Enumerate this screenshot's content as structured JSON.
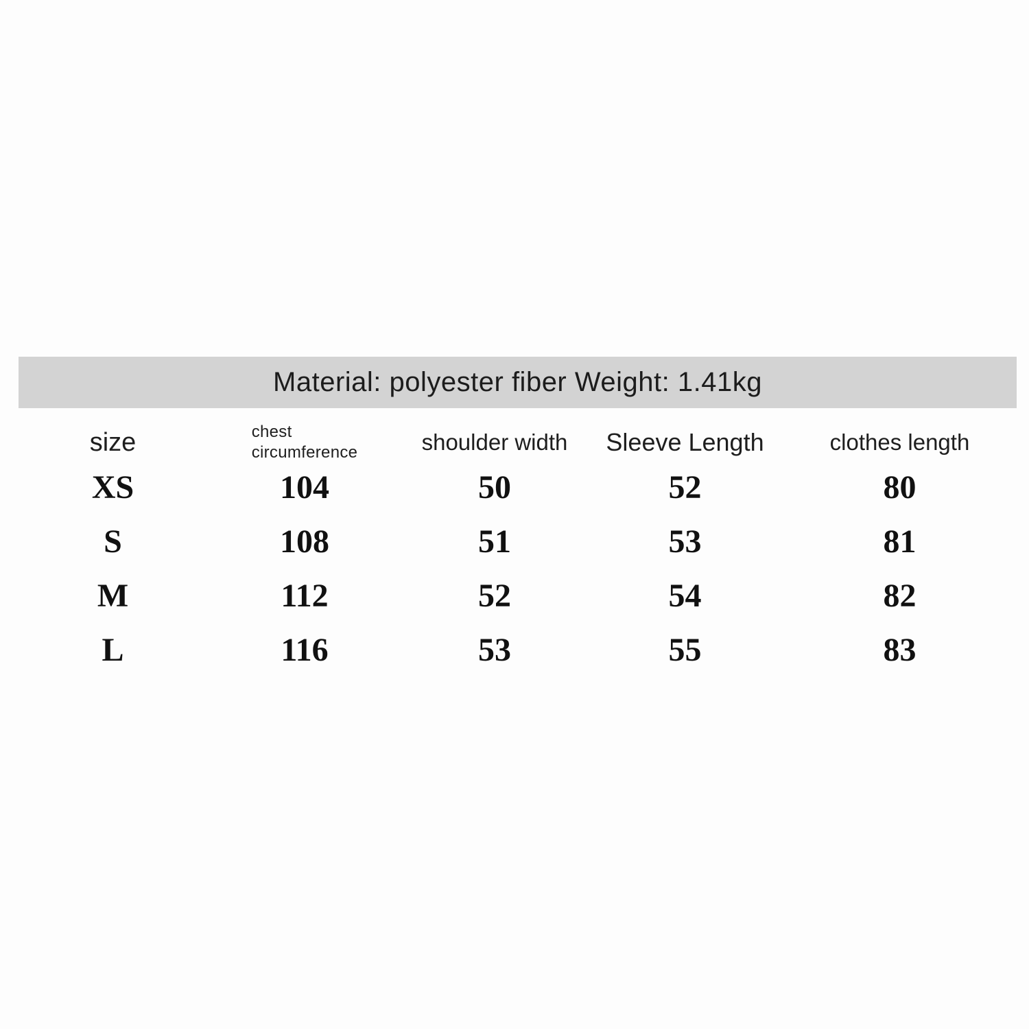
{
  "banner": {
    "text": "Material: polyester fiber Weight: 1.41kg"
  },
  "table": {
    "headers": [
      {
        "label": "size"
      },
      {
        "label": "chest\ncircumference"
      },
      {
        "label": "shoulder width"
      },
      {
        "label": "Sleeve Length"
      },
      {
        "label": "clothes length"
      }
    ],
    "rows": [
      {
        "size": "XS",
        "chest_circumference": "104",
        "shoulder_width": "50",
        "sleeve_length": "52",
        "clothes_length": "80"
      },
      {
        "size": "S",
        "chest_circumference": "108",
        "shoulder_width": "51",
        "sleeve_length": "53",
        "clothes_length": "81"
      },
      {
        "size": "M",
        "chest_circumference": "112",
        "shoulder_width": "52",
        "sleeve_length": "54",
        "clothes_length": "82"
      },
      {
        "size": "L",
        "chest_circumference": "116",
        "shoulder_width": "53",
        "sleeve_length": "55",
        "clothes_length": "83"
      }
    ]
  },
  "colors": {
    "banner_background": "#d3d3d3",
    "page_background": "#fdfdfd",
    "text": "#1d1d1d"
  }
}
